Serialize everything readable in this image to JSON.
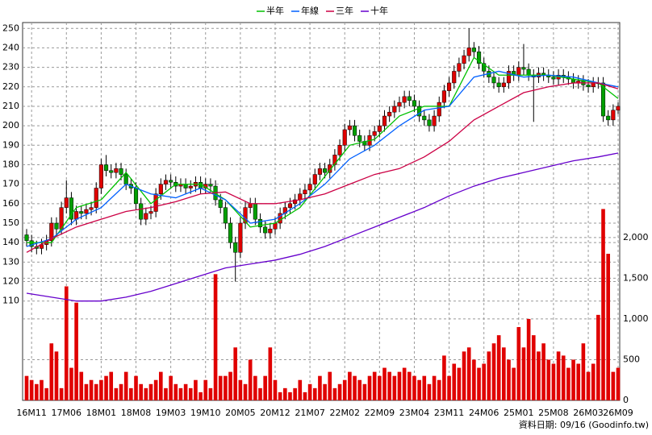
{
  "chart_data": {
    "type": "candlestick",
    "categories": [
      null,
      "16M11",
      null,
      null,
      null,
      null,
      null,
      null,
      "17M06",
      null,
      null,
      null,
      null,
      null,
      null,
      "18M01",
      null,
      null,
      null,
      null,
      null,
      null,
      "18M08",
      null,
      null,
      null,
      null,
      null,
      null,
      "19M03",
      null,
      null,
      null,
      null,
      null,
      null,
      "19M10",
      null,
      null,
      null,
      null,
      null,
      null,
      "20M05",
      null,
      null,
      null,
      null,
      null,
      null,
      "20M12",
      null,
      null,
      null,
      null,
      null,
      null,
      "21M07",
      null,
      null,
      null,
      null,
      null,
      null,
      "22M02",
      null,
      null,
      null,
      null,
      null,
      null,
      "22M09",
      null,
      null,
      null,
      null,
      null,
      null,
      "23M04",
      null,
      null,
      null,
      null,
      null,
      null,
      "23M11",
      null,
      null,
      null,
      null,
      null,
      null,
      "24M06",
      null,
      null,
      null,
      null,
      null,
      null,
      "25M01",
      null,
      null,
      null,
      null,
      null,
      null,
      "25M08",
      null,
      null,
      null,
      null,
      null,
      null,
      "26M03",
      null,
      null,
      null,
      null,
      null,
      "26M09"
    ],
    "open": [
      144,
      141,
      138,
      137,
      139,
      141,
      150,
      147,
      158,
      163,
      152,
      156,
      155,
      157,
      158,
      168,
      180,
      177,
      176,
      178,
      175,
      170,
      168,
      160,
      152,
      155,
      156,
      165,
      170,
      172,
      171,
      169,
      170,
      168,
      169,
      171,
      168,
      170,
      169,
      162,
      158,
      150,
      140,
      135,
      150,
      158,
      160,
      152,
      148,
      145,
      147,
      150,
      155,
      158,
      160,
      162,
      165,
      167,
      170,
      175,
      178,
      176,
      180,
      185,
      190,
      198,
      200,
      195,
      192,
      190,
      195,
      197,
      200,
      205,
      207,
      210,
      212,
      215,
      213,
      210,
      205,
      203,
      200,
      205,
      212,
      218,
      222,
      228,
      232,
      236,
      240,
      238,
      232,
      228,
      225,
      222,
      220,
      222,
      228,
      226,
      230,
      229,
      226,
      225,
      227,
      226,
      225,
      224,
      226,
      225,
      224,
      222,
      223,
      221,
      220,
      222,
      222,
      205,
      203,
      208
    ],
    "high": [
      147,
      144,
      141,
      142,
      144,
      153,
      153,
      161,
      172,
      166,
      159,
      159,
      160,
      161,
      171,
      183,
      185,
      180,
      181,
      181,
      178,
      173,
      171,
      163,
      158,
      159,
      168,
      173,
      175,
      175,
      174,
      173,
      173,
      172,
      174,
      174,
      173,
      173,
      172,
      165,
      161,
      153,
      143,
      153,
      161,
      163,
      163,
      155,
      151,
      150,
      153,
      158,
      161,
      163,
      165,
      168,
      170,
      173,
      178,
      181,
      181,
      183,
      188,
      193,
      201,
      203,
      203,
      198,
      195,
      198,
      200,
      203,
      208,
      210,
      213,
      215,
      218,
      218,
      216,
      213,
      208,
      206,
      208,
      215,
      221,
      225,
      231,
      235,
      239,
      250,
      243,
      241,
      235,
      231,
      228,
      225,
      225,
      231,
      231,
      233,
      242,
      232,
      229,
      230,
      230,
      229,
      228,
      229,
      229,
      228,
      227,
      226,
      226,
      224,
      225,
      225,
      225,
      208,
      211,
      212
    ],
    "low": [
      138,
      135,
      134,
      134,
      136,
      138,
      144,
      144,
      155,
      149,
      149,
      152,
      152,
      154,
      155,
      165,
      174,
      173,
      173,
      172,
      167,
      165,
      157,
      149,
      149,
      152,
      153,
      162,
      167,
      168,
      166,
      166,
      165,
      165,
      166,
      165,
      165,
      166,
      159,
      155,
      147,
      137,
      120,
      132,
      147,
      155,
      149,
      145,
      142,
      142,
      144,
      147,
      152,
      155,
      157,
      159,
      162,
      164,
      167,
      172,
      173,
      173,
      177,
      182,
      187,
      195,
      192,
      189,
      187,
      187,
      192,
      194,
      197,
      202,
      204,
      207,
      209,
      210,
      207,
      202,
      200,
      197,
      197,
      202,
      209,
      215,
      219,
      225,
      229,
      233,
      235,
      229,
      225,
      222,
      219,
      217,
      217,
      219,
      223,
      223,
      226,
      223,
      202,
      222,
      223,
      222,
      221,
      221,
      222,
      221,
      219,
      219,
      218,
      217,
      217,
      219,
      202,
      200,
      200,
      206
    ],
    "close": [
      141,
      138,
      137,
      139,
      141,
      150,
      147,
      158,
      163,
      152,
      156,
      155,
      157,
      158,
      168,
      180,
      177,
      176,
      178,
      175,
      170,
      168,
      160,
      152,
      155,
      156,
      165,
      170,
      172,
      171,
      169,
      170,
      168,
      169,
      171,
      168,
      170,
      169,
      162,
      158,
      150,
      140,
      135,
      150,
      158,
      160,
      152,
      148,
      145,
      147,
      150,
      155,
      158,
      160,
      162,
      165,
      167,
      170,
      175,
      178,
      176,
      180,
      185,
      190,
      198,
      200,
      195,
      192,
      190,
      195,
      197,
      200,
      205,
      207,
      210,
      212,
      215,
      213,
      210,
      205,
      203,
      200,
      205,
      212,
      218,
      222,
      228,
      232,
      236,
      240,
      238,
      232,
      228,
      225,
      222,
      220,
      222,
      228,
      226,
      230,
      229,
      226,
      225,
      227,
      226,
      225,
      224,
      226,
      225,
      224,
      222,
      223,
      221,
      220,
      222,
      222,
      205,
      203,
      208,
      210
    ],
    "up_color": "#e00000",
    "down_color": "#00a000",
    "volume": {
      "axis": "y2",
      "color": "#e00000",
      "values": [
        300,
        250,
        200,
        250,
        150,
        700,
        600,
        150,
        1400,
        400,
        1200,
        350,
        200,
        250,
        200,
        250,
        300,
        350,
        150,
        200,
        350,
        150,
        300,
        200,
        150,
        200,
        250,
        350,
        150,
        300,
        200,
        150,
        200,
        150,
        250,
        100,
        250,
        150,
        1550,
        300,
        300,
        350,
        650,
        250,
        200,
        500,
        300,
        150,
        300,
        650,
        250,
        100,
        150,
        100,
        150,
        250,
        100,
        200,
        150,
        300,
        200,
        350,
        150,
        200,
        250,
        350,
        300,
        250,
        200,
        300,
        350,
        300,
        400,
        350,
        300,
        350,
        400,
        350,
        300,
        250,
        300,
        200,
        300,
        250,
        550,
        300,
        450,
        400,
        600,
        650,
        500,
        400,
        450,
        600,
        700,
        800,
        650,
        500,
        400,
        900,
        650,
        1000,
        800,
        600,
        700,
        500,
        450,
        600,
        550,
        400,
        500,
        450,
        700,
        350,
        450,
        1050,
        2350,
        1800,
        350,
        400
      ]
    },
    "lines": [
      {
        "name": "半年",
        "color": "#00c000",
        "x": [
          0,
          5,
          10,
          15,
          20,
          25,
          30,
          35,
          40,
          45,
          50,
          55,
          60,
          65,
          70,
          75,
          80,
          85,
          90,
          95,
          100,
          105,
          110,
          115,
          119
        ],
        "values": [
          140,
          140,
          158,
          162,
          176,
          160,
          170,
          170,
          162,
          148,
          150,
          158,
          174,
          190,
          193,
          205,
          210,
          210,
          235,
          226,
          226,
          226,
          224,
          222,
          214
        ]
      },
      {
        "name": "年線",
        "color": "#0060ff",
        "x": [
          0,
          5,
          10,
          15,
          20,
          25,
          30,
          35,
          40,
          45,
          50,
          55,
          60,
          65,
          70,
          75,
          80,
          85,
          90,
          95,
          100,
          105,
          110,
          115,
          119
        ],
        "values": [
          138,
          142,
          152,
          158,
          170,
          165,
          163,
          168,
          162,
          150,
          152,
          160,
          170,
          183,
          190,
          200,
          208,
          210,
          225,
          228,
          225,
          226,
          225,
          222,
          220
        ]
      },
      {
        "name": "三年",
        "color": "#cc0044",
        "x": [
          0,
          5,
          10,
          15,
          20,
          25,
          30,
          35,
          40,
          45,
          50,
          55,
          60,
          65,
          70,
          75,
          80,
          85,
          90,
          95,
          100,
          105,
          110,
          115,
          119
        ],
        "values": [
          135,
          142,
          148,
          152,
          156,
          158,
          161,
          165,
          166,
          160,
          160,
          162,
          165,
          170,
          175,
          178,
          184,
          192,
          203,
          210,
          217,
          220,
          222,
          222,
          219
        ]
      },
      {
        "name": "十年",
        "color": "#6600cc",
        "x": [
          0,
          5,
          10,
          15,
          20,
          25,
          30,
          35,
          40,
          45,
          50,
          55,
          60,
          65,
          70,
          75,
          80,
          85,
          90,
          95,
          100,
          105,
          110,
          115,
          119
        ],
        "values": [
          114,
          112,
          110,
          110,
          112,
          115,
          119,
          123,
          127,
          129,
          131,
          134,
          138,
          143,
          148,
          153,
          158,
          164,
          169,
          173,
          176,
          179,
          182,
          184,
          186
        ]
      }
    ],
    "ylim": [
      59,
      253
    ],
    "yticks": [
      110,
      120,
      130,
      140,
      150,
      160,
      170,
      180,
      190,
      200,
      210,
      220,
      230,
      240,
      250
    ],
    "y2lim": [
      0,
      4640
    ],
    "y2ticks": [
      0,
      500,
      {
        "value": 1000,
        "label": "1,000"
      },
      {
        "value": 1500,
        "label": "1,500"
      },
      {
        "value": 2000,
        "label": "2,000"
      }
    ],
    "grid": true,
    "legend": "top",
    "source_note": "資料日期: 09/16  (Goodinfo.tw)"
  }
}
